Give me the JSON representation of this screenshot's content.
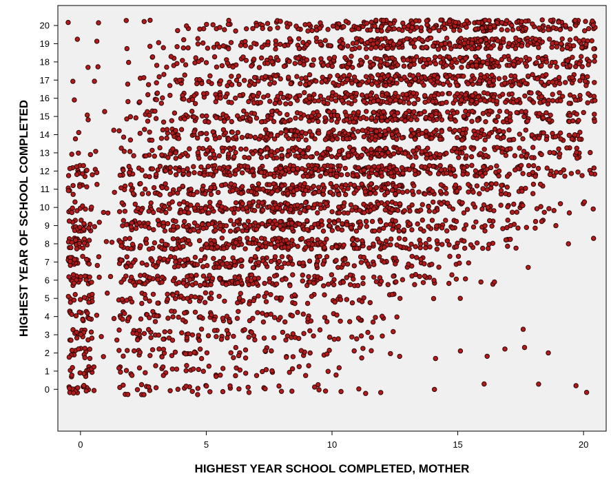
{
  "chart_data": {
    "type": "scatter",
    "title": "",
    "xlabel": "HIGHEST YEAR SCHOOL COMPLETED, MOTHER",
    "ylabel": "HIGHEST YEAR OF SCHOOL COMPLETED",
    "xlim": [
      -0.9,
      20.9
    ],
    "ylim": [
      -2.3,
      21.1
    ],
    "x_ticks": [
      0,
      5,
      10,
      15,
      20
    ],
    "y_ticks": [
      0,
      1,
      2,
      3,
      4,
      5,
      6,
      7,
      8,
      9,
      10,
      11,
      12,
      13,
      14,
      15,
      16,
      17,
      18,
      19,
      20
    ],
    "grid": false,
    "jitter": true,
    "colors": {
      "marker_fill": "#b51a1a",
      "marker_edge": "#2a0404",
      "plot_background": "#f0f0f0"
    },
    "series": [
      {
        "density_by_y": [
          {
            "y": 20,
            "x_min": 0,
            "x_max": 20,
            "peak_x": [
              12,
              16
            ]
          },
          {
            "y": 19,
            "x_min": 0,
            "x_max": 20,
            "peak_x": [
              12,
              16
            ]
          },
          {
            "y": 18,
            "x_min": 0,
            "x_max": 20,
            "peak_x": [
              12,
              16
            ]
          },
          {
            "y": 17,
            "x_min": 0,
            "x_max": 20,
            "peak_x": [
              12,
              16
            ]
          },
          {
            "y": 16,
            "x_min": 0,
            "x_max": 20,
            "peak_x": [
              12,
              16
            ]
          },
          {
            "y": 15,
            "x_min": 0,
            "x_max": 20,
            "peak_x": [
              12
            ]
          },
          {
            "y": 14,
            "x_min": 0,
            "x_max": 20,
            "peak_x": [
              12
            ]
          },
          {
            "y": 13,
            "x_min": 0,
            "x_max": 20,
            "peak_x": [
              12
            ]
          },
          {
            "y": 12,
            "x_min": 0,
            "x_max": 20,
            "peak_x": [
              0,
              8,
              12
            ]
          },
          {
            "y": 11,
            "x_min": 0,
            "x_max": 18,
            "peak_x": [
              8,
              12
            ]
          },
          {
            "y": 10,
            "x_min": 0,
            "x_max": 20,
            "peak_x": [
              8,
              12
            ]
          },
          {
            "y": 9,
            "x_min": 0,
            "x_max": 18,
            "peak_x": [
              0,
              8
            ]
          },
          {
            "y": 8,
            "x_min": 0,
            "x_max": 17,
            "peak_x": [
              0,
              8
            ]
          },
          {
            "y": 7,
            "x_min": 0,
            "x_max": 15,
            "peak_x": [
              0,
              6
            ]
          },
          {
            "y": 6,
            "x_min": 0,
            "x_max": 16,
            "peak_x": [
              0,
              6
            ]
          },
          {
            "y": 5,
            "x_min": 0,
            "x_max": 14,
            "peak_x": [
              0
            ]
          },
          {
            "y": 4,
            "x_min": 0,
            "x_max": 13,
            "peak_x": [
              0
            ]
          },
          {
            "y": 3,
            "x_min": 0,
            "x_max": 12,
            "peak_x": [
              0
            ]
          },
          {
            "y": 2,
            "x_min": 0,
            "x_max": 18,
            "peak_x": [
              0
            ]
          },
          {
            "y": 1,
            "x_min": 0,
            "x_max": 10,
            "peak_x": [
              0
            ]
          },
          {
            "y": 0,
            "x_min": 0,
            "x_max": 20,
            "peak_x": [
              0
            ]
          }
        ]
      }
    ]
  }
}
